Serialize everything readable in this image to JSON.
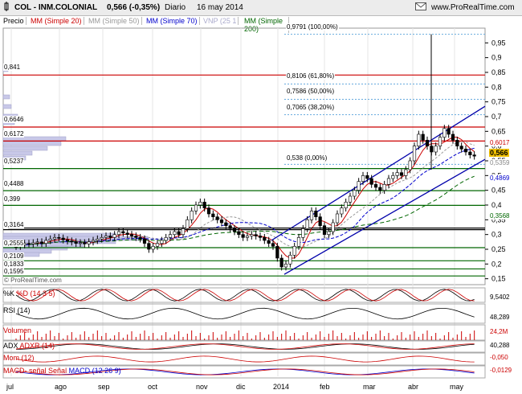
{
  "header": {
    "symbol": "COL - INM.COLONIAL",
    "quote": "0,566 (-0,35%)",
    "period": "Diario",
    "date": "16 may 2014",
    "site": "www.ProRealTime.com",
    "watermark": "© ProRealTime.com"
  },
  "legend": {
    "items": [
      {
        "label": "Precio",
        "color": "#000000"
      },
      {
        "label": "MM (Simple 20)",
        "color": "#cc0000"
      },
      {
        "label": "MM (Simple 50)",
        "color": "#999999"
      },
      {
        "label": "MM (Simple 70)",
        "color": "#0000cc"
      },
      {
        "label": "VNP (25 1",
        "color": "#aaaacc"
      },
      {
        "label": "MM (Simple 200)",
        "color": "#006600"
      }
    ]
  },
  "chart_data": {
    "type": "candlestick",
    "price_axis": {
      "ylim": [
        0.13,
        1.0
      ],
      "ticks": [
        0.15,
        0.2,
        0.25,
        0.3,
        0.35,
        0.4,
        0.45,
        0.5,
        0.55,
        0.6,
        0.65,
        0.7,
        0.75,
        0.8,
        0.85,
        0.9,
        0.95
      ],
      "tick_labels": [
        "0,15",
        "0,2",
        "0,25",
        "0,3",
        "0,35",
        "0,4",
        "0,45",
        "0,5",
        "0,55",
        "0,6",
        "0,65",
        "0,7",
        "0,75",
        "0,8",
        "0,85",
        "0,9",
        "0,95"
      ]
    },
    "x_axis": {
      "months": [
        "jul",
        "ago",
        "sep",
        "oct",
        "nov",
        "dic",
        "2014",
        "feb",
        "mar",
        "abr",
        "may"
      ]
    },
    "last_price": {
      "value": 0.566,
      "label": "0,566"
    },
    "right_labels": [
      {
        "value": 0.6017,
        "label": "0,6017",
        "color": "#cc0000"
      },
      {
        "value": 0.5359,
        "label": "0,5359",
        "color": "#888888"
      },
      {
        "value": 0.4869,
        "label": "0,4869",
        "color": "#0000cc"
      },
      {
        "value": 0.3568,
        "label": "0,3568",
        "color": "#006600"
      }
    ],
    "horizontal_levels": [
      {
        "value": 0.841,
        "label": "0,841",
        "color": "#cc0000"
      },
      {
        "value": 0.6646,
        "label": "0,6646",
        "color": "#cc0000"
      },
      {
        "value": 0.6172,
        "label": "0,6172",
        "color": "#cc0000"
      },
      {
        "value": 0.5237,
        "label": "0,5237",
        "color": "#006600"
      },
      {
        "value": 0.4488,
        "label": "0,4488",
        "color": "#006600"
      },
      {
        "value": 0.399,
        "label": "0,399",
        "color": "#006600"
      },
      {
        "value": 0.3164,
        "label": "0,3164",
        "color": "#000000"
      },
      {
        "value": 0.2555,
        "label": "0,2555",
        "color": "#006600"
      },
      {
        "value": 0.2109,
        "label": "0,2109",
        "color": "#006600"
      },
      {
        "value": 0.1833,
        "label": "0,1833",
        "color": "#006600"
      },
      {
        "value": 0.1595,
        "label": "0,1595",
        "color": "#006600"
      }
    ],
    "fibonacci": [
      {
        "value": 0.9791,
        "label": "0,9791 (100,00%)"
      },
      {
        "value": 0.8106,
        "label": "0,8106 (61,80%)"
      },
      {
        "value": 0.7586,
        "label": "0,7586 (50,00%)"
      },
      {
        "value": 0.7065,
        "label": "0,7065 (38,20%)"
      },
      {
        "value": 0.538,
        "label": "0,538 (0,00%)"
      }
    ],
    "close_series": [
      0.26,
      0.265,
      0.27,
      0.268,
      0.272,
      0.275,
      0.27,
      0.28,
      0.285,
      0.29,
      0.288,
      0.282,
      0.278,
      0.275,
      0.27,
      0.272,
      0.268,
      0.275,
      0.28,
      0.285,
      0.29,
      0.295,
      0.29,
      0.3,
      0.31,
      0.305,
      0.3,
      0.295,
      0.29,
      0.285,
      0.27,
      0.25,
      0.26,
      0.27,
      0.28,
      0.29,
      0.3,
      0.31,
      0.3,
      0.32,
      0.35,
      0.38,
      0.4,
      0.41,
      0.39,
      0.37,
      0.36,
      0.35,
      0.34,
      0.33,
      0.32,
      0.31,
      0.3,
      0.29,
      0.295,
      0.3,
      0.295,
      0.29,
      0.28,
      0.27,
      0.26,
      0.22,
      0.19,
      0.2,
      0.23,
      0.26,
      0.29,
      0.32,
      0.35,
      0.38,
      0.36,
      0.33,
      0.3,
      0.31,
      0.34,
      0.37,
      0.39,
      0.41,
      0.43,
      0.45,
      0.48,
      0.5,
      0.49,
      0.47,
      0.46,
      0.45,
      0.47,
      0.49,
      0.5,
      0.51,
      0.5,
      0.52,
      0.55,
      0.6,
      0.64,
      0.62,
      0.6,
      0.58,
      0.6,
      0.63,
      0.66,
      0.64,
      0.62,
      0.6,
      0.59,
      0.58,
      0.57,
      0.566
    ],
    "indicators": [
      {
        "name": "%K %D (14 3 5)",
        "value": "9,5402"
      },
      {
        "name": "RSI (14)",
        "value": "48,289"
      },
      {
        "name": "Volumen",
        "value": "24,2M"
      },
      {
        "name": "ADX ADXR (14)",
        "value": "40,288"
      },
      {
        "name": "Mom (12)",
        "value": "-0,050"
      },
      {
        "name": "MACD- señal Señal MACD (12 26 9)",
        "value": "-0,0129"
      }
    ]
  },
  "labels": {
    "stoch_a": "%K",
    "stoch_b": "%D (14 3 5)",
    "rsi": "RSI (14)",
    "vol": "Volumen",
    "adx_a": "ADX",
    "adx_b": "ADXR (14)",
    "mom": "Mom (12)",
    "macd_a": "MACD-",
    "macd_b": "señal",
    "macd_c": "Señal",
    "macd_d": "MACD (12 26 9)"
  },
  "colors": {
    "up": "#ffffff",
    "down": "#000000",
    "grid": "#d0d0d0",
    "channel": "#0000aa",
    "accent": "#cc0000"
  }
}
